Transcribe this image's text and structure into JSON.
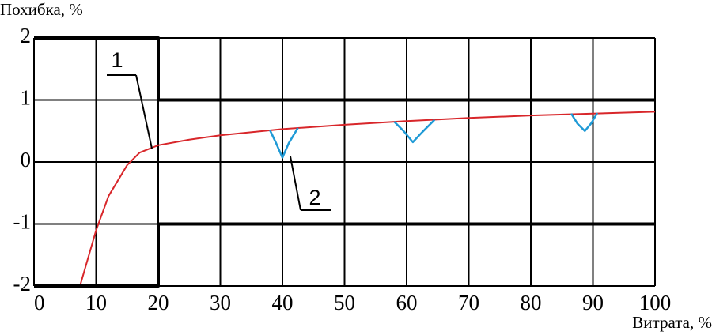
{
  "chart_data": {
    "type": "line",
    "ylabel": "Похибка, %",
    "xlabel": "Витрата, %",
    "xlim": [
      0,
      100
    ],
    "xticks": [
      0,
      10,
      20,
      30,
      40,
      50,
      60,
      70,
      80,
      90,
      100
    ],
    "ylim": [
      -2,
      2
    ],
    "yticks": [
      -2,
      -1,
      0,
      1,
      2
    ],
    "grid": true,
    "series": [
      {
        "name": "1",
        "color": "#d8262a",
        "linewidth": 2,
        "x": [
          7.4,
          10,
          12,
          15,
          17,
          20,
          25,
          30,
          40,
          50,
          60,
          70,
          80,
          90,
          100
        ],
        "values": [
          -2,
          -1.1,
          -0.55,
          -0.05,
          0.15,
          0.27,
          0.36,
          0.43,
          0.53,
          0.6,
          0.66,
          0.71,
          0.75,
          0.78,
          0.81
        ]
      },
      {
        "name": "2",
        "color": "#1f9ad6",
        "linewidth": 2.5,
        "x": [
          38,
          39,
          40,
          41,
          42.5,
          null,
          58,
          59.5,
          61,
          62.5,
          64.5,
          null,
          86.5,
          87.5,
          88.7,
          89.7,
          90.7
        ],
        "values": [
          0.51,
          0.3,
          0.07,
          0.3,
          0.55,
          null,
          0.65,
          0.5,
          0.32,
          0.48,
          0.68,
          null,
          0.78,
          0.62,
          0.5,
          0.62,
          0.79
        ]
      },
      {
        "color": "#000000",
        "linewidth": 4,
        "x": [
          0,
          20,
          20,
          100
        ],
        "values": [
          2,
          2,
          1,
          1
        ]
      },
      {
        "color": "#000000",
        "linewidth": 4,
        "x": [
          0,
          20,
          20,
          100
        ],
        "values": [
          -2,
          -2,
          -1,
          -1
        ]
      }
    ]
  }
}
